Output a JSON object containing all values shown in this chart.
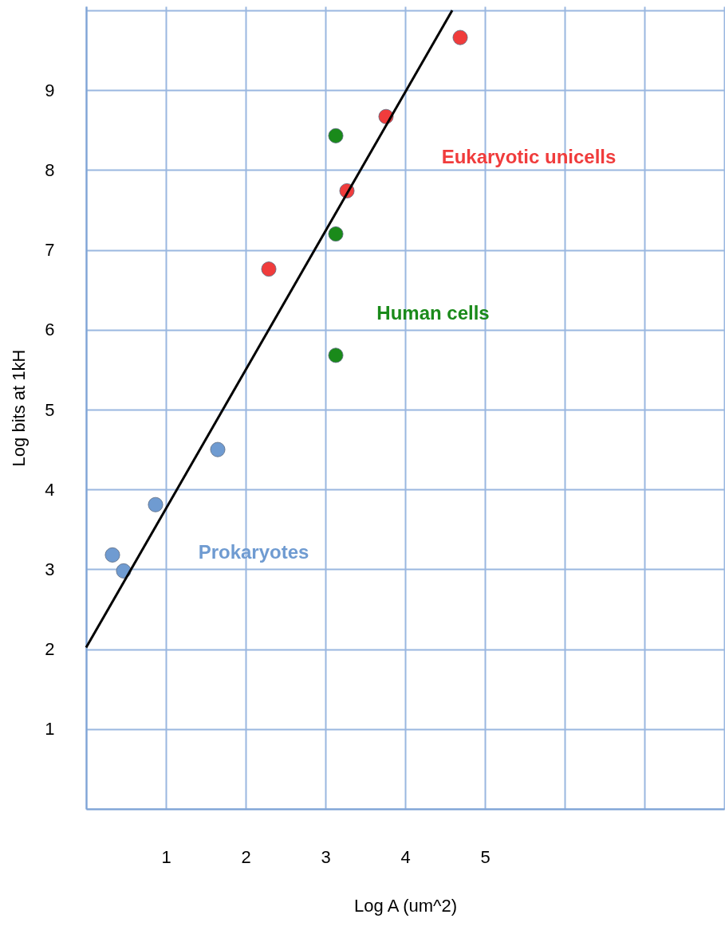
{
  "chart_data": {
    "type": "scatter",
    "xlabel": "Log A (um^2)",
    "ylabel": "Log bits at 1kH",
    "xlim": [
      0,
      8
    ],
    "ylim": [
      0,
      10.05
    ],
    "xticks": [
      {
        "value": 0,
        "label": null
      },
      1,
      2,
      3,
      4,
      5,
      {
        "value": 6,
        "label": null
      },
      {
        "value": 7,
        "label": null
      },
      {
        "value": 8,
        "label": null
      }
    ],
    "yticks": [
      {
        "value": 0,
        "label": null
      },
      1,
      2,
      3,
      4,
      5,
      6,
      7,
      8,
      9,
      {
        "value": 10,
        "label": null
      }
    ],
    "grid": true,
    "marker": "circle",
    "series": [
      {
        "name": "Prokaryotes",
        "color": "#6f9bd1",
        "x": [
          0.33,
          0.47,
          0.87,
          1.65
        ],
        "values": [
          3.18,
          2.98,
          3.81,
          4.5
        ]
      },
      {
        "name": "Eukaryotic unicells",
        "color": "#f03c3c",
        "x": [
          2.29,
          3.27,
          3.76,
          4.69
        ],
        "values": [
          6.76,
          7.74,
          8.67,
          9.66
        ]
      },
      {
        "name": "Human cells",
        "color": "#1a8a1a",
        "x": [
          3.13,
          3.13,
          3.13
        ],
        "values": [
          8.43,
          7.2,
          5.68
        ]
      },
      {
        "type": "line",
        "marker": "none",
        "color": "#000000",
        "x": [
          0,
          4.59
        ],
        "values": [
          2.02,
          10.0
        ]
      }
    ]
  }
}
